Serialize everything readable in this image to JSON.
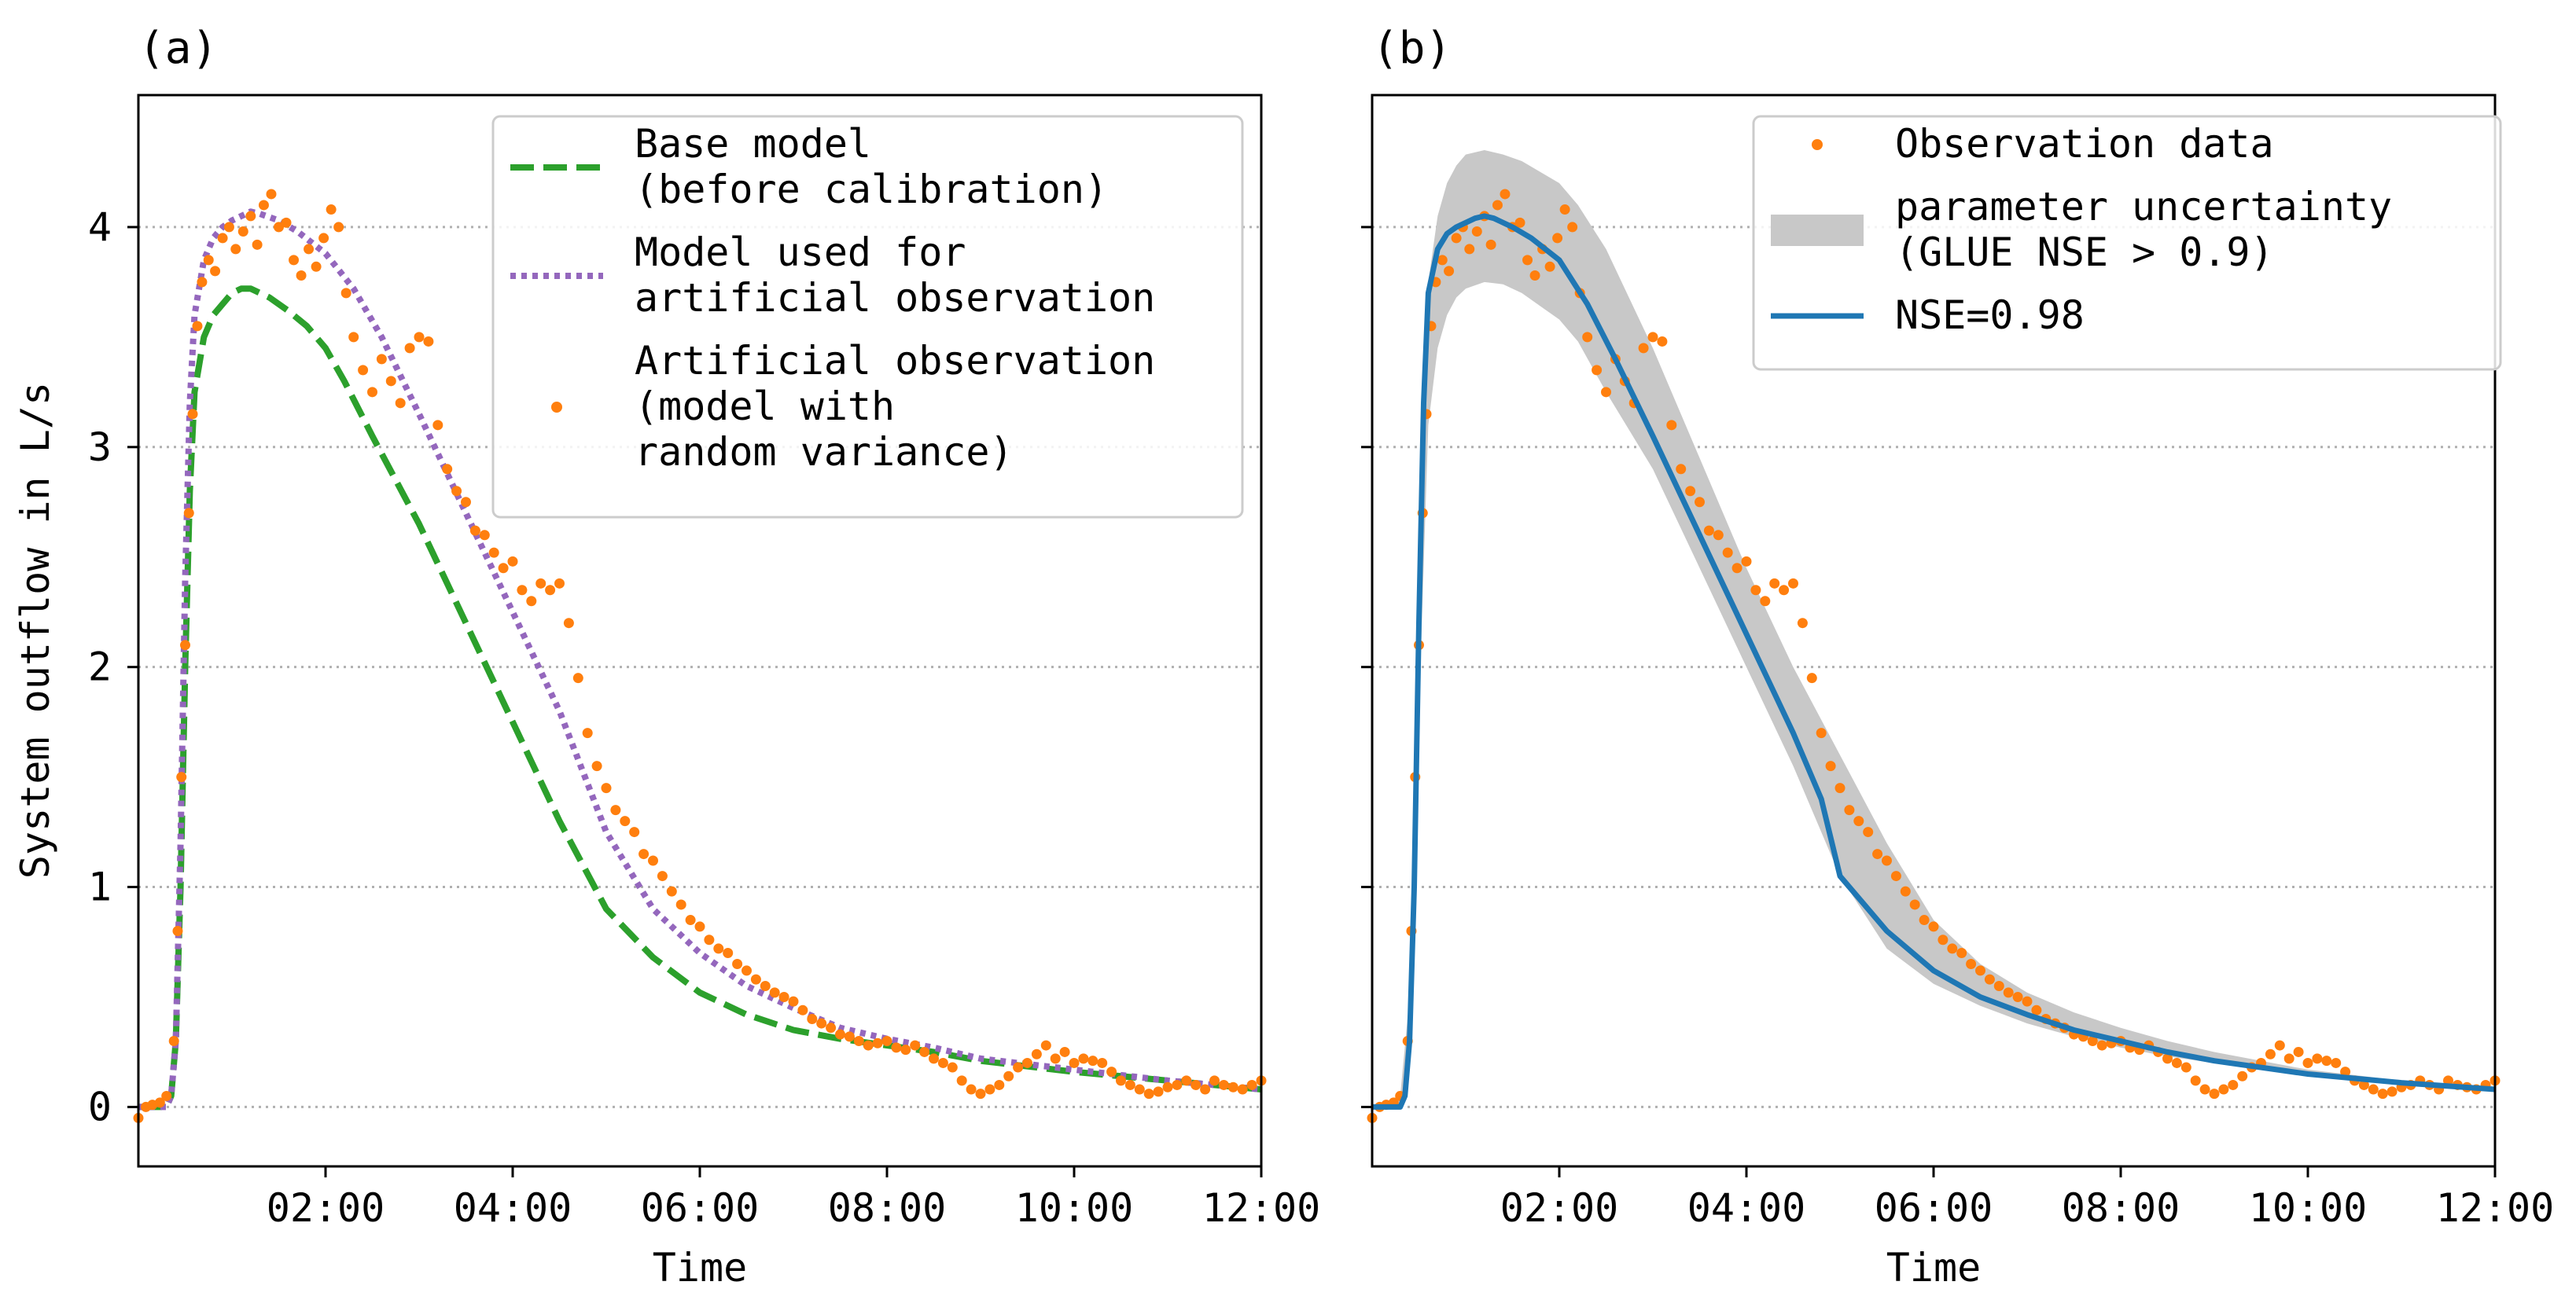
{
  "chart_data": [
    {
      "type": "line",
      "panel_label": "(a)",
      "xlabel": "Time",
      "ylabel": "System outflow in L/s",
      "xlim": [
        0,
        12
      ],
      "ylim": [
        -0.27,
        4.6
      ],
      "xticks": [
        2,
        4,
        6,
        8,
        10,
        12
      ],
      "xtick_labels": [
        "02:00",
        "04:00",
        "06:00",
        "08:00",
        "10:00",
        "12:00"
      ],
      "yticks": [
        0,
        1,
        2,
        3,
        4
      ],
      "ytick_labels": [
        "0",
        "1",
        "2",
        "3",
        "4"
      ],
      "grid": "horizontal dotted",
      "legend_position": "top-right",
      "series": [
        {
          "name": "Base model (before calibration)",
          "legend_lines": [
            "Base model",
            "(before calibration)"
          ],
          "style": "dashed",
          "color": "#2ca02c",
          "x": [
            0,
            0.3,
            0.35,
            0.4,
            0.45,
            0.5,
            0.55,
            0.6,
            0.7,
            0.8,
            0.9,
            1.0,
            1.1,
            1.2,
            1.4,
            1.6,
            1.8,
            2.0,
            2.2,
            2.5,
            3.0,
            3.5,
            4.0,
            4.5,
            5.0,
            5.5,
            6.0,
            6.5,
            7.0,
            7.5,
            8.0,
            8.5,
            9.0,
            10.0,
            11.0,
            12.0
          ],
          "y": [
            0,
            0,
            0.05,
            0.3,
            1.0,
            2.0,
            2.8,
            3.25,
            3.5,
            3.6,
            3.65,
            3.7,
            3.72,
            3.72,
            3.68,
            3.62,
            3.55,
            3.45,
            3.3,
            3.05,
            2.65,
            2.2,
            1.75,
            1.3,
            0.9,
            0.68,
            0.52,
            0.42,
            0.35,
            0.31,
            0.28,
            0.25,
            0.21,
            0.16,
            0.12,
            0.08
          ]
        },
        {
          "name": "Model used for artificial observation",
          "legend_lines": [
            "Model used for",
            "artificial observation"
          ],
          "style": "dotted",
          "color": "#9467bd",
          "x": [
            0,
            0.3,
            0.35,
            0.4,
            0.45,
            0.5,
            0.55,
            0.6,
            0.7,
            0.8,
            0.9,
            1.0,
            1.1,
            1.2,
            1.3,
            1.5,
            1.7,
            2.0,
            2.3,
            2.6,
            3.0,
            3.5,
            4.0,
            4.5,
            5.0,
            5.5,
            6.0,
            6.5,
            7.0,
            7.5,
            8.0,
            8.5,
            9.0,
            10.0,
            11.0,
            12.0
          ],
          "y": [
            0,
            0,
            0.05,
            0.3,
            1.2,
            2.4,
            3.2,
            3.6,
            3.85,
            3.95,
            4.0,
            4.03,
            4.05,
            4.07,
            4.06,
            4.03,
            3.98,
            3.88,
            3.72,
            3.5,
            3.15,
            2.7,
            2.25,
            1.8,
            1.25,
            0.9,
            0.7,
            0.55,
            0.45,
            0.36,
            0.31,
            0.27,
            0.22,
            0.17,
            0.12,
            0.08
          ]
        },
        {
          "name": "Artificial observation (model with random variance)",
          "legend_lines": [
            "Artificial observation",
            "(model with",
            "random variance)"
          ],
          "style": "markers",
          "color": "#ff7f0e",
          "x": [
            0.0,
            0.08,
            0.15,
            0.23,
            0.3,
            0.38,
            0.42,
            0.46,
            0.5,
            0.54,
            0.58,
            0.63,
            0.68,
            0.75,
            0.82,
            0.9,
            0.97,
            1.04,
            1.12,
            1.2,
            1.27,
            1.34,
            1.42,
            1.5,
            1.58,
            1.66,
            1.74,
            1.82,
            1.9,
            1.98,
            2.06,
            2.14,
            2.22,
            2.3,
            2.4,
            2.5,
            2.6,
            2.7,
            2.8,
            2.9,
            3.0,
            3.1,
            3.2,
            3.3,
            3.4,
            3.5,
            3.6,
            3.7,
            3.8,
            3.9,
            4.0,
            4.1,
            4.2,
            4.3,
            4.4,
            4.5,
            4.6,
            4.7,
            4.8,
            4.9,
            5.0,
            5.1,
            5.2,
            5.3,
            5.4,
            5.5,
            5.6,
            5.7,
            5.8,
            5.9,
            6.0,
            6.1,
            6.2,
            6.3,
            6.4,
            6.5,
            6.6,
            6.7,
            6.8,
            6.9,
            7.0,
            7.1,
            7.2,
            7.3,
            7.4,
            7.5,
            7.6,
            7.7,
            7.8,
            7.9,
            8.0,
            8.1,
            8.2,
            8.3,
            8.4,
            8.5,
            8.6,
            8.7,
            8.8,
            8.9,
            9.0,
            9.1,
            9.2,
            9.3,
            9.4,
            9.5,
            9.6,
            9.7,
            9.8,
            9.9,
            10.0,
            10.1,
            10.2,
            10.3,
            10.4,
            10.5,
            10.6,
            10.7,
            10.8,
            10.9,
            11.0,
            11.1,
            11.2,
            11.3,
            11.4,
            11.5,
            11.6,
            11.7,
            11.8,
            11.9,
            12.0
          ],
          "y": [
            -0.05,
            0.0,
            0.01,
            0.02,
            0.05,
            0.3,
            0.8,
            1.5,
            2.1,
            2.7,
            3.15,
            3.55,
            3.75,
            3.85,
            3.8,
            3.95,
            4.0,
            3.9,
            3.98,
            4.05,
            3.92,
            4.1,
            4.15,
            4.0,
            4.02,
            3.85,
            3.78,
            3.9,
            3.82,
            3.95,
            4.08,
            4.0,
            3.7,
            3.5,
            3.35,
            3.25,
            3.4,
            3.3,
            3.2,
            3.45,
            3.5,
            3.48,
            3.1,
            2.9,
            2.8,
            2.75,
            2.62,
            2.6,
            2.52,
            2.45,
            2.48,
            2.35,
            2.3,
            2.38,
            2.35,
            2.38,
            2.2,
            1.95,
            1.7,
            1.55,
            1.45,
            1.35,
            1.3,
            1.25,
            1.15,
            1.12,
            1.05,
            0.98,
            0.92,
            0.85,
            0.82,
            0.76,
            0.72,
            0.7,
            0.65,
            0.62,
            0.58,
            0.55,
            0.52,
            0.5,
            0.48,
            0.44,
            0.4,
            0.38,
            0.36,
            0.33,
            0.32,
            0.3,
            0.28,
            0.29,
            0.3,
            0.27,
            0.26,
            0.28,
            0.25,
            0.22,
            0.2,
            0.18,
            0.12,
            0.08,
            0.06,
            0.08,
            0.1,
            0.14,
            0.18,
            0.2,
            0.24,
            0.28,
            0.22,
            0.25,
            0.2,
            0.22,
            0.21,
            0.2,
            0.16,
            0.12,
            0.1,
            0.08,
            0.06,
            0.07,
            0.09,
            0.1,
            0.12,
            0.1,
            0.08,
            0.12,
            0.1,
            0.09,
            0.08,
            0.1,
            0.12
          ]
        }
      ]
    },
    {
      "type": "line",
      "panel_label": "(b)",
      "xlabel": "Time",
      "xlim": [
        0,
        12
      ],
      "ylim": [
        -0.27,
        4.6
      ],
      "xticks": [
        2,
        4,
        6,
        8,
        10,
        12
      ],
      "xtick_labels": [
        "02:00",
        "04:00",
        "06:00",
        "08:00",
        "10:00",
        "12:00"
      ],
      "yticks": [
        0,
        1,
        2,
        3,
        4
      ],
      "grid": "horizontal dotted",
      "legend_position": "top-right",
      "band": {
        "name": "parameter uncertainty (GLUE NSE > 0.9)",
        "legend_lines": [
          "parameter uncertainty",
          "(GLUE NSE > 0.9)"
        ],
        "color": "#c8c8c8",
        "x": [
          0,
          0.3,
          0.4,
          0.5,
          0.6,
          0.7,
          0.8,
          0.9,
          1.0,
          1.2,
          1.4,
          1.6,
          1.8,
          2.0,
          2.2,
          2.5,
          3.0,
          3.5,
          4.0,
          4.5,
          5.0,
          5.5,
          6.0,
          6.5,
          7.0,
          7.5,
          8.0,
          8.5,
          9.0,
          10.0,
          11.0,
          12.0
        ],
        "upper": [
          0,
          0.05,
          0.5,
          2.6,
          3.75,
          4.05,
          4.2,
          4.28,
          4.33,
          4.35,
          4.33,
          4.3,
          4.25,
          4.2,
          4.1,
          3.9,
          3.45,
          2.95,
          2.45,
          2.0,
          1.6,
          1.2,
          0.85,
          0.65,
          0.52,
          0.43,
          0.36,
          0.3,
          0.25,
          0.17,
          0.12,
          0.09
        ],
        "lower": [
          0,
          0.02,
          0.2,
          1.8,
          3.1,
          3.45,
          3.6,
          3.68,
          3.72,
          3.75,
          3.74,
          3.7,
          3.64,
          3.58,
          3.48,
          3.25,
          2.9,
          2.45,
          2.0,
          1.55,
          1.05,
          0.72,
          0.56,
          0.46,
          0.38,
          0.32,
          0.27,
          0.23,
          0.2,
          0.14,
          0.1,
          0.07
        ]
      },
      "series": [
        {
          "name": "Observation data",
          "legend_lines": [
            "Observation data"
          ],
          "style": "markers",
          "color": "#ff7f0e",
          "same_as": "panel (a) artificial observation"
        },
        {
          "name": "NSE=0.98",
          "legend_lines": [
            "NSE=0.98"
          ],
          "style": "solid",
          "color": "#1f77b4",
          "x": [
            0,
            0.3,
            0.35,
            0.4,
            0.45,
            0.5,
            0.55,
            0.6,
            0.7,
            0.8,
            0.9,
            1.0,
            1.1,
            1.2,
            1.3,
            1.5,
            1.7,
            2.0,
            2.3,
            2.6,
            3.0,
            3.5,
            4.0,
            4.5,
            4.8,
            5.0,
            5.5,
            6.0,
            6.5,
            7.0,
            7.5,
            8.0,
            8.5,
            9.0,
            10.0,
            11.0,
            12.0
          ],
          "y": [
            0,
            0,
            0.05,
            0.3,
            1.0,
            2.2,
            3.2,
            3.7,
            3.9,
            3.97,
            4.0,
            4.02,
            4.04,
            4.05,
            4.04,
            4.0,
            3.95,
            3.85,
            3.65,
            3.4,
            3.05,
            2.6,
            2.15,
            1.7,
            1.4,
            1.05,
            0.8,
            0.62,
            0.5,
            0.42,
            0.35,
            0.3,
            0.25,
            0.21,
            0.15,
            0.11,
            0.08
          ]
        }
      ]
    }
  ]
}
